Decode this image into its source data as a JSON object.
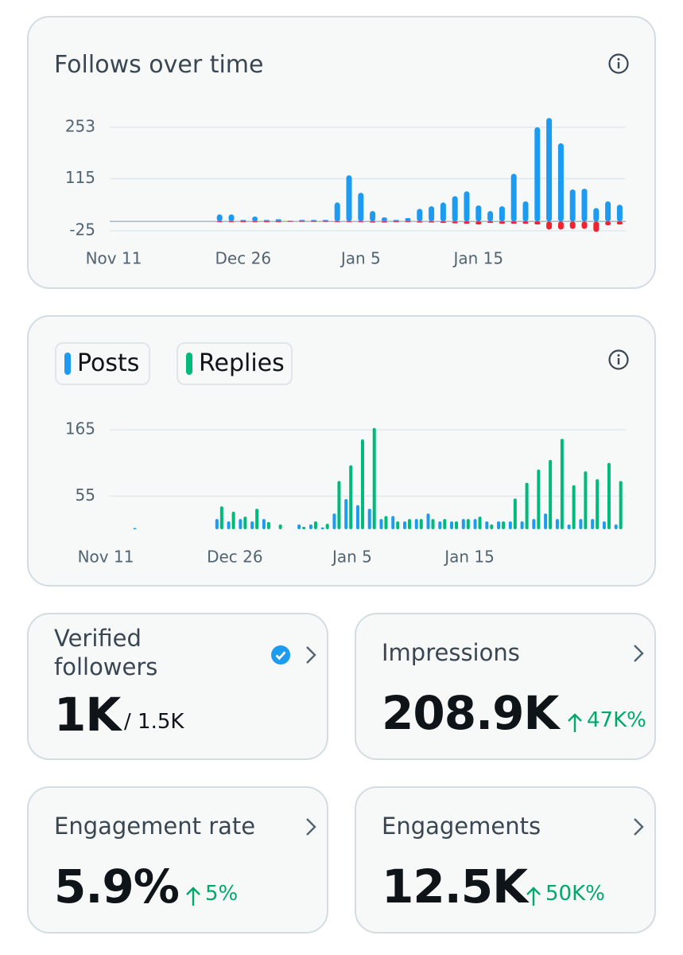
{
  "chart_data": [
    {
      "type": "bar",
      "title": "Follows over time",
      "categories": [
        "Nov 11",
        null,
        null,
        null,
        null,
        null,
        null,
        null,
        null,
        null,
        null,
        "Dec 26",
        null,
        null,
        null,
        null,
        null,
        null,
        null,
        null,
        null,
        "Jan 5",
        null,
        null,
        null,
        null,
        null,
        null,
        null,
        null,
        null,
        "Jan 15",
        null,
        null,
        null,
        null,
        null,
        null,
        null,
        null,
        null,
        null,
        null,
        null
      ],
      "series": [
        {
          "color": "#1d9bf0",
          "values": [
            0,
            0,
            0,
            0,
            0,
            0,
            0,
            0,
            0,
            19,
            19,
            4,
            13,
            4,
            6,
            2,
            4,
            4,
            4,
            51,
            124,
            77,
            28,
            11,
            4,
            9,
            34,
            41,
            51,
            68,
            81,
            43,
            28,
            41,
            128,
            54,
            253,
            278,
            210,
            86,
            88,
            36,
            54,
            45
          ]
        },
        {
          "color": "#f4212e",
          "values": [
            0,
            0,
            0,
            0,
            0,
            0,
            0,
            0,
            0,
            -2,
            -2,
            -2,
            -2,
            -2,
            -2,
            -1,
            -1,
            -1,
            -1,
            -2,
            -2,
            -2,
            -3,
            -3,
            -2,
            -2,
            -3,
            -3,
            -4,
            -5,
            -6,
            -8,
            -4,
            -6,
            -6,
            -6,
            -8,
            -22,
            -22,
            -20,
            -20,
            -28,
            -10,
            -8
          ]
        }
      ],
      "ylim": [
        -30,
        280
      ],
      "yticks": [
        -25,
        115,
        253
      ],
      "grid": true
    },
    {
      "type": "bar",
      "categories": [
        "Nov 11",
        null,
        null,
        null,
        null,
        null,
        null,
        null,
        null,
        null,
        null,
        "Dec 26",
        null,
        null,
        null,
        null,
        null,
        null,
        null,
        null,
        null,
        "Jan 5",
        null,
        null,
        null,
        null,
        null,
        null,
        null,
        null,
        null,
        "Jan 15",
        null,
        null,
        null,
        null,
        null,
        null,
        null,
        null,
        null,
        null,
        null,
        null
      ],
      "series": [
        {
          "name": "Posts",
          "color": "#1d9bf0",
          "values": [
            0,
            0,
            2,
            0,
            0,
            0,
            0,
            0,
            0,
            17,
            13,
            17,
            13,
            17,
            0,
            0,
            8,
            8,
            3,
            26,
            50,
            40,
            34,
            17,
            22,
            13,
            17,
            26,
            13,
            13,
            17,
            17,
            13,
            13,
            13,
            13,
            17,
            26,
            17,
            8,
            17,
            17,
            13,
            8
          ]
        },
        {
          "name": "Replies",
          "color": "#00ba7c",
          "values": [
            0,
            0,
            0,
            0,
            0,
            0,
            0,
            0,
            0,
            38,
            29,
            21,
            34,
            12,
            8,
            0,
            4,
            13,
            9,
            80,
            106,
            149,
            168,
            22,
            13,
            17,
            17,
            17,
            17,
            13,
            17,
            21,
            8,
            13,
            51,
            77,
            99,
            115,
            150,
            73,
            96,
            83,
            110,
            80
          ]
        }
      ],
      "ylim": [
        0,
        180
      ],
      "yticks": [
        55,
        165
      ],
      "grid": true
    }
  ],
  "cards": [
    {
      "title": "Verified followers",
      "value": "1K",
      "total": "/ 1.5K"
    },
    {
      "title": "Impressions",
      "value": "208.9K",
      "change": "47K%"
    },
    {
      "title": "Engagement rate",
      "value": "5.9%",
      "change": "5%"
    },
    {
      "title": "Engagements",
      "value": "12.5K",
      "change": "50K%"
    }
  ]
}
